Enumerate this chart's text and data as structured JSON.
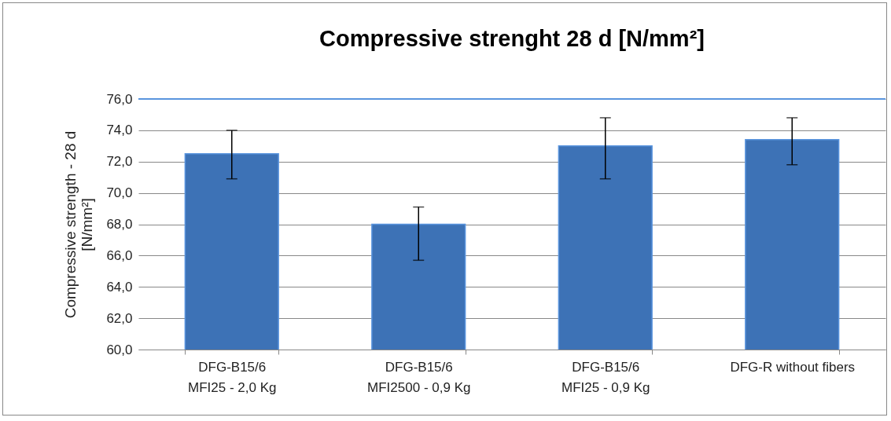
{
  "chart_data": {
    "type": "bar",
    "title": "Compressive strenght  28 d [N/mm²]",
    "ylabel": "Compressive strength - 28 d\n[N/mm²]",
    "categories": [
      "DFG-B15/6\nMFI25 - 2,0 Kg",
      "DFG-B15/6\nMFI2500 - 0,9 Kg",
      "DFG-B15/6\nMFI25 - 0,9 Kg",
      "DFG-R without fibers"
    ],
    "values": [
      72.5,
      68.0,
      73.0,
      73.4
    ],
    "errors": [
      [
        70.9,
        74.0
      ],
      [
        65.7,
        69.1
      ],
      [
        70.9,
        74.8
      ],
      [
        71.8,
        74.8
      ]
    ],
    "color": "#3d72b6",
    "ylim": [
      60,
      76
    ],
    "yticks": [
      {
        "value": 60,
        "label": "60,0"
      },
      {
        "value": 62,
        "label": "62,0"
      },
      {
        "value": 64,
        "label": "64,0"
      },
      {
        "value": 66,
        "label": "66,0"
      },
      {
        "value": 68,
        "label": "68,0"
      },
      {
        "value": 70,
        "label": "70,0"
      },
      {
        "value": 72,
        "label": "72,0"
      },
      {
        "value": 74,
        "label": "74,0"
      },
      {
        "value": 76,
        "label": "76,0"
      }
    ],
    "grid": "y"
  }
}
